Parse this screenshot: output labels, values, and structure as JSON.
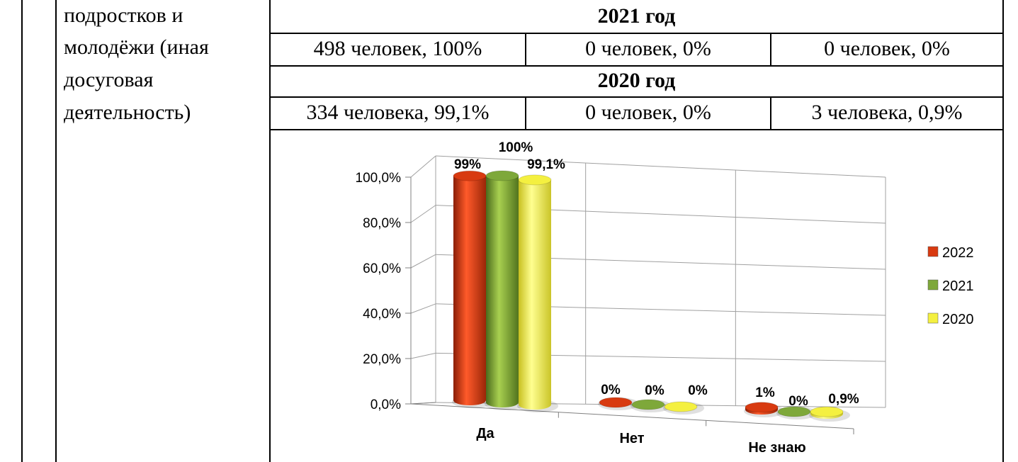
{
  "left_cell": {
    "lines": [
      "подростков и",
      "молодёжи (иная",
      "досуговая",
      "деятельность)"
    ]
  },
  "table": {
    "year_2021": {
      "heading": "2021 год",
      "cells": [
        "498 человек, 100%",
        "0 человек, 0%",
        "0 человек, 0%"
      ]
    },
    "year_2020": {
      "heading": "2020 год",
      "cells": [
        "334 человека, 99,1%",
        "0 человек, 0%",
        "3 человека, 0,9%"
      ]
    }
  },
  "chart_data": {
    "type": "bar",
    "style": "3d-cylinder",
    "categories": [
      "Да",
      "Нет",
      "Не знаю"
    ],
    "series": [
      {
        "name": "2022",
        "color": "#d83a10",
        "values": [
          99,
          0,
          1
        ],
        "labels": [
          "99%",
          "0%",
          "1%"
        ]
      },
      {
        "name": "2021",
        "color": "#7ea83a",
        "values": [
          100,
          0,
          0
        ],
        "labels": [
          "100%",
          "0%",
          "0%"
        ]
      },
      {
        "name": "2020",
        "color": "#f4f040",
        "values": [
          99.1,
          0,
          0.9
        ],
        "labels": [
          "99,1%",
          "0%",
          "0,9%"
        ]
      }
    ],
    "ylim": [
      0,
      100
    ],
    "yticks": [
      "0,0%",
      "20,0%",
      "40,0%",
      "60,0%",
      "80,0%",
      "100,0%"
    ],
    "grid": true,
    "legend": "right"
  }
}
